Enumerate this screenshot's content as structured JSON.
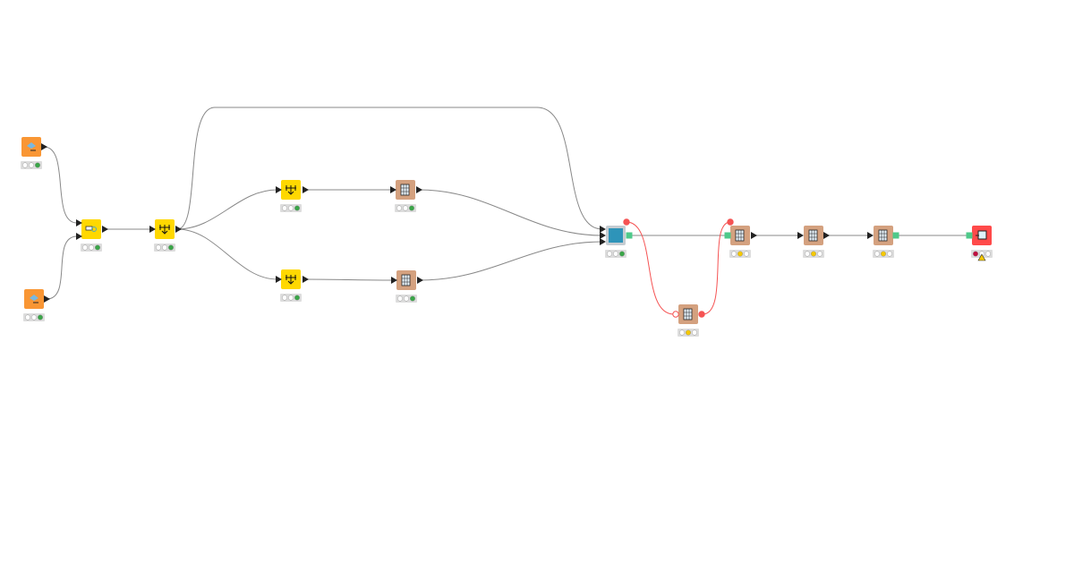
{
  "colors": {
    "reader": "#f99634",
    "manipulator": "#ffd800",
    "brown": "#d4a17f",
    "metanode": "#2e94b9",
    "sink": "#ff4a4a",
    "connection": "#888888",
    "flow_variable": "#f55353",
    "data_port": "#4ec98a",
    "status_green": "#3aa648",
    "status_yellow": "#f5c800",
    "status_red": "#c0103f",
    "status_off": "#ffffff",
    "warning": "#f5c800"
  },
  "nodes": [
    {
      "id": "n1",
      "kind": "reader",
      "icon": "file-reader-icon",
      "status": [
        "off",
        "off",
        "green"
      ]
    },
    {
      "id": "n2",
      "kind": "reader",
      "icon": "file-reader-icon",
      "status": [
        "off",
        "off",
        "green"
      ]
    },
    {
      "id": "n3",
      "kind": "manipulator",
      "icon": "joiner-icon",
      "status": [
        "off",
        "off",
        "green"
      ]
    },
    {
      "id": "n4",
      "kind": "manipulator",
      "icon": "splitter-icon",
      "status": [
        "off",
        "off",
        "green"
      ]
    },
    {
      "id": "n5",
      "kind": "manipulator",
      "icon": "splitter-icon",
      "status": [
        "off",
        "off",
        "green"
      ]
    },
    {
      "id": "n6",
      "kind": "manipulator",
      "icon": "splitter-icon",
      "status": [
        "off",
        "off",
        "green"
      ]
    },
    {
      "id": "n7",
      "kind": "brown",
      "icon": "table-transform-icon",
      "status": [
        "off",
        "off",
        "green"
      ]
    },
    {
      "id": "n8",
      "kind": "brown",
      "icon": "table-transform-icon",
      "status": [
        "off",
        "off",
        "green"
      ]
    },
    {
      "id": "n9",
      "kind": "metanode",
      "icon": "metanode-icon",
      "status": [
        "off",
        "off",
        "green"
      ]
    },
    {
      "id": "n10",
      "kind": "brown",
      "icon": "variable-creator-icon",
      "status": [
        "off",
        "yellow",
        "off"
      ]
    },
    {
      "id": "n11",
      "kind": "brown",
      "icon": "column-filter-icon",
      "status": [
        "off",
        "yellow",
        "off"
      ]
    },
    {
      "id": "n12",
      "kind": "brown",
      "icon": "column-filter-icon",
      "status": [
        "off",
        "yellow",
        "off"
      ]
    },
    {
      "id": "n13",
      "kind": "brown",
      "icon": "column-filter-icon",
      "status": [
        "off",
        "yellow",
        "off"
      ]
    },
    {
      "id": "n14",
      "kind": "sink",
      "icon": "table-writer-icon",
      "status": [
        "red",
        "off",
        "off"
      ],
      "warning": true
    }
  ],
  "connections": [
    {
      "from": "n1",
      "to": "n3",
      "type": "data"
    },
    {
      "from": "n2",
      "to": "n3",
      "type": "data"
    },
    {
      "from": "n3",
      "to": "n4",
      "type": "data"
    },
    {
      "from": "n4",
      "to": "n5",
      "type": "data"
    },
    {
      "from": "n4",
      "to": "n6",
      "type": "data"
    },
    {
      "from": "n4",
      "to": "n9",
      "type": "data"
    },
    {
      "from": "n5",
      "to": "n7",
      "type": "data"
    },
    {
      "from": "n6",
      "to": "n8",
      "type": "data"
    },
    {
      "from": "n7",
      "to": "n9",
      "type": "data"
    },
    {
      "from": "n8",
      "to": "n9",
      "type": "data"
    },
    {
      "from": "n9",
      "to": "n11",
      "type": "data"
    },
    {
      "from": "n9",
      "to": "n10",
      "type": "flow_variable"
    },
    {
      "from": "n10",
      "to": "n11",
      "type": "flow_variable"
    },
    {
      "from": "n11",
      "to": "n12",
      "type": "data"
    },
    {
      "from": "n12",
      "to": "n13",
      "type": "data"
    },
    {
      "from": "n13",
      "to": "n14",
      "type": "data"
    }
  ]
}
